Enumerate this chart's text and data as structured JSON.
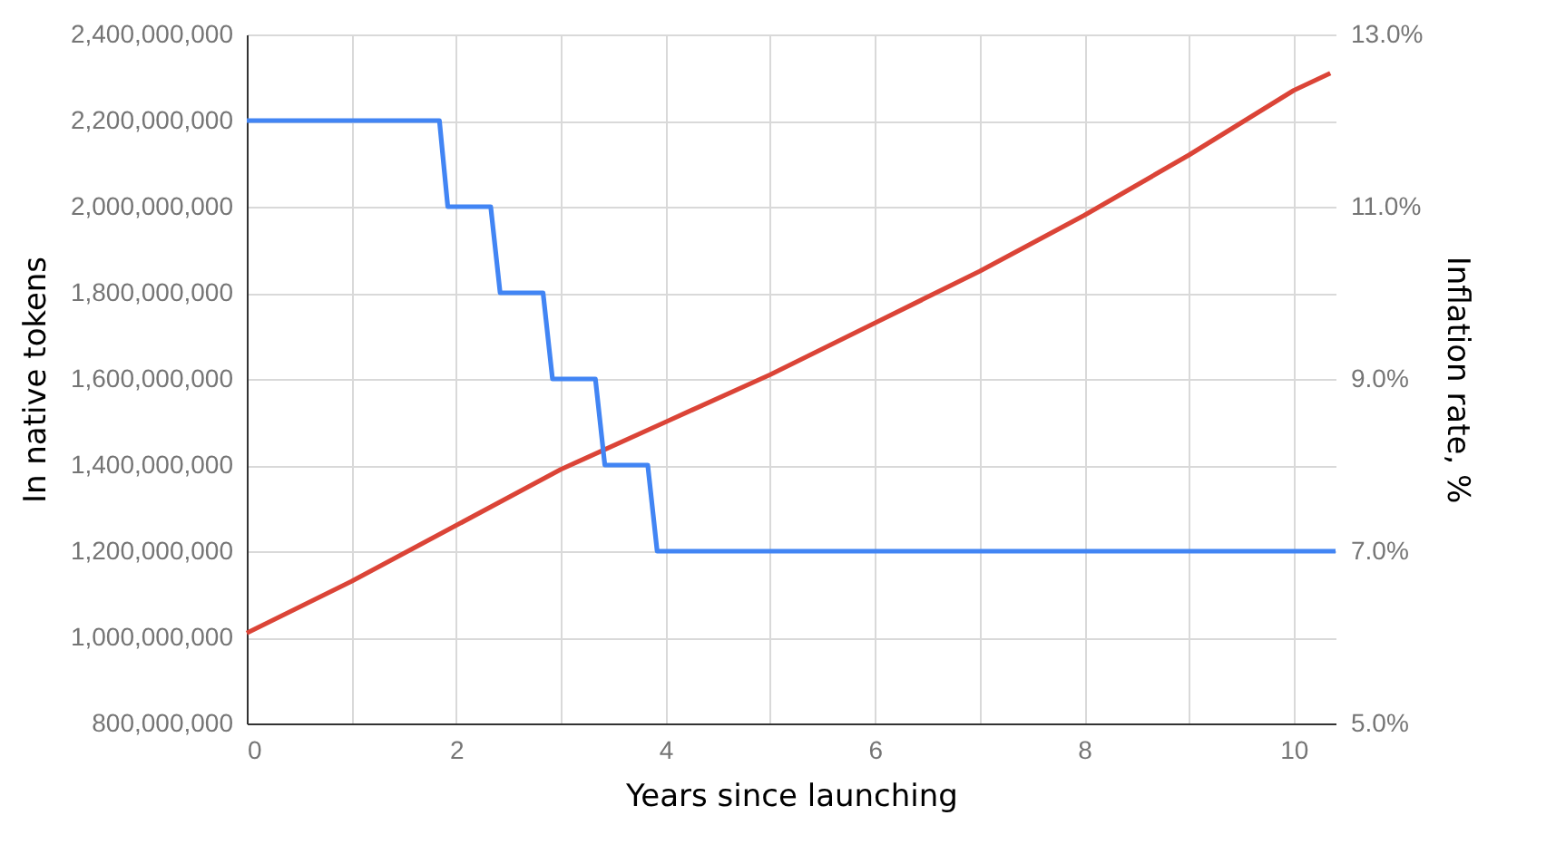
{
  "chart_data": {
    "type": "line",
    "xlabel": "Years since launching",
    "ylabel": "In native tokens",
    "y2label": "Inflation rate, %",
    "series": [
      {
        "color": "#db4437",
        "x": [
          0,
          1,
          2,
          3,
          4,
          5,
          6,
          7,
          8,
          9,
          10,
          10.35
        ],
        "values": [
          1010000000,
          1130000000,
          1260000000,
          1390000000,
          1500000000,
          1610000000,
          1730000000,
          1850000000,
          1980000000,
          2120000000,
          2270000000,
          2310000000
        ]
      },
      {
        "color": "#4285f4",
        "axis": "y2",
        "x": [
          0,
          1.84,
          1.92,
          2.33,
          2.42,
          2.83,
          2.92,
          3.33,
          3.42,
          3.83,
          3.92,
          10.4
        ],
        "values": [
          12,
          12,
          11,
          11,
          10,
          10,
          9,
          9,
          8,
          8,
          7,
          7
        ]
      }
    ],
    "xlim": [
      0,
      10.4
    ],
    "xticks": [
      0,
      {
        "value": 1,
        "label": null
      },
      2,
      {
        "value": 3,
        "label": null
      },
      4,
      {
        "value": 5,
        "label": null
      },
      6,
      {
        "value": 7,
        "label": null
      },
      8,
      {
        "value": 9,
        "label": null
      },
      10
    ],
    "ylim": [
      800000000,
      2400000000
    ],
    "yticks": [
      {
        "value": 800000000,
        "label": "800,000,000"
      },
      {
        "value": 1000000000,
        "label": "1,000,000,000"
      },
      {
        "value": 1200000000,
        "label": "1,200,000,000"
      },
      {
        "value": 1400000000,
        "label": "1,400,000,000"
      },
      {
        "value": 1600000000,
        "label": "1,600,000,000"
      },
      {
        "value": 1800000000,
        "label": "1,800,000,000"
      },
      {
        "value": 2000000000,
        "label": "2,000,000,000"
      },
      {
        "value": 2200000000,
        "label": "2,200,000,000"
      },
      {
        "value": 2400000000,
        "label": "2,400,000,000"
      }
    ],
    "y2lim": [
      5,
      13
    ],
    "y2ticks": [
      {
        "value": 5,
        "label": "5.0%"
      },
      {
        "value": 7,
        "label": "7.0%"
      },
      {
        "value": 9,
        "label": "9.0%"
      },
      {
        "value": 11,
        "label": "11.0%"
      },
      {
        "value": 13,
        "label": "13.0%"
      }
    ],
    "grid": true
  }
}
